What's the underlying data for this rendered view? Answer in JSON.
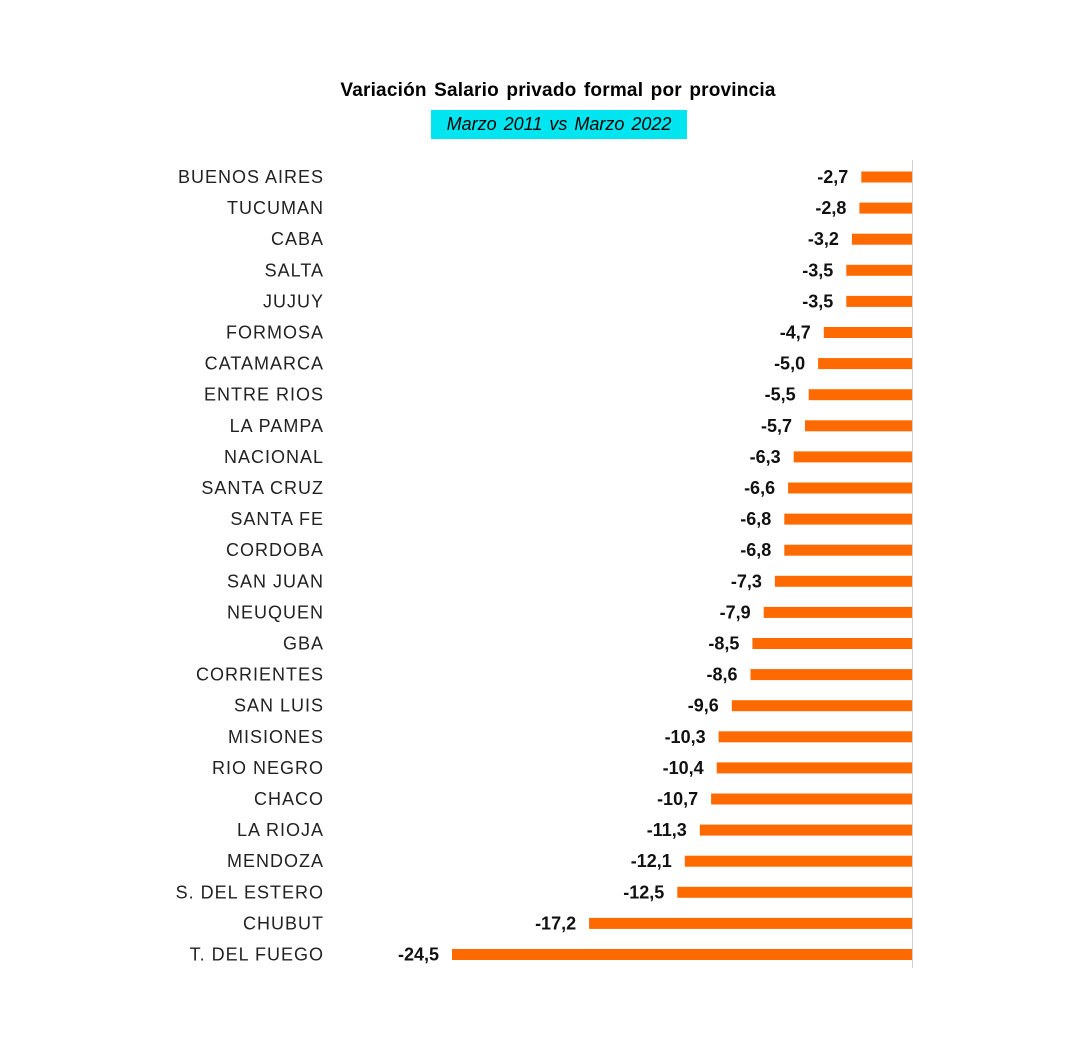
{
  "chart_data": {
    "type": "bar",
    "orientation": "horizontal",
    "title": "Variación  Salario privado formal por provincia",
    "subtitle": "Marzo 2011  vs Marzo 2022",
    "categories": [
      "BUENOS AIRES",
      "TUCUMAN",
      "CABA",
      "SALTA",
      "JUJUY",
      "FORMOSA",
      "CATAMARCA",
      "ENTRE RIOS",
      "LA PAMPA",
      "NACIONAL",
      "SANTA CRUZ",
      "SANTA FE",
      "CORDOBA",
      "SAN JUAN",
      "NEUQUEN",
      "GBA",
      "CORRIENTES",
      "SAN LUIS",
      "MISIONES",
      "RIO NEGRO",
      "CHACO",
      "LA RIOJA",
      "MENDOZA",
      "S. DEL ESTERO",
      "CHUBUT",
      "T. DEL FUEGO"
    ],
    "values": [
      -2.7,
      -2.8,
      -3.2,
      -3.5,
      -3.5,
      -4.7,
      -5.0,
      -5.5,
      -5.7,
      -6.3,
      -6.6,
      -6.8,
      -6.8,
      -7.3,
      -7.9,
      -8.5,
      -8.6,
      -9.6,
      -10.3,
      -10.4,
      -10.7,
      -11.3,
      -12.1,
      -12.5,
      -17.2,
      -24.5
    ],
    "value_labels": [
      "-2,7",
      "-2,8",
      "-3,2",
      "-3,5",
      "-3,5",
      "-4,7",
      "-5,0",
      "-5,5",
      "-5,7",
      "-6,3",
      "-6,6",
      "-6,8",
      "-6,8",
      "-7,3",
      "-7,9",
      "-8,5",
      "-8,6",
      "-9,6",
      "-10,3",
      "-10,4",
      "-10,7",
      "-11,3",
      "-12,1",
      "-12,5",
      "-17,2",
      "-24,5"
    ],
    "xlim": [
      -24.5,
      0
    ],
    "grid": false,
    "legend": "none",
    "colors": {
      "bar": "#ff6a00",
      "subtitle_highlight": "#00e5f0",
      "axis": "#d0d0d0"
    }
  }
}
